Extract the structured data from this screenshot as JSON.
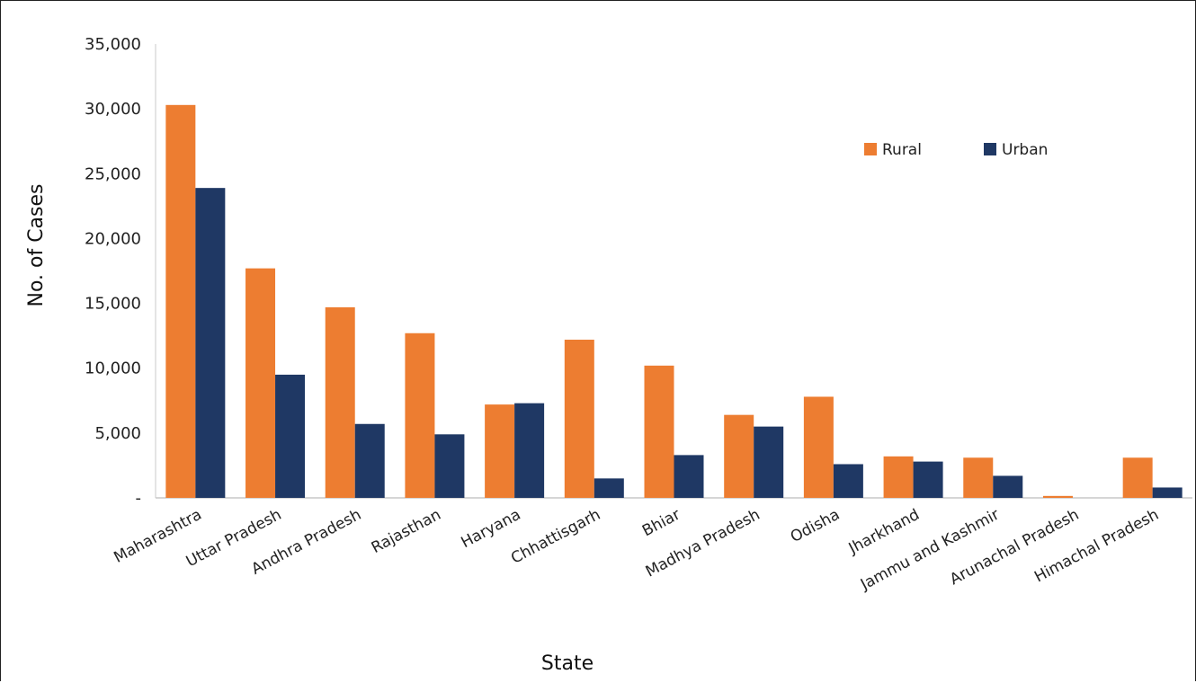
{
  "chart_data": {
    "type": "bar",
    "title": "",
    "xlabel": "State",
    "ylabel": "No. of Cases",
    "ylim": [
      0,
      35000
    ],
    "yticks": [
      0,
      5000,
      10000,
      15000,
      20000,
      25000,
      30000,
      35000
    ],
    "ytick_labels": [
      "-",
      "5,000",
      "10,000",
      "15,000",
      "20,000",
      "25,000",
      "30,000",
      "35,000"
    ],
    "grid": false,
    "legend_position": "top-right",
    "categories": [
      "Maharashtra",
      "Uttar Pradesh",
      "Andhra Pradesh",
      "Rajasthan",
      "Haryana",
      "Chhattisgarh",
      "Bhiar",
      "Madhya Pradesh",
      "Odisha",
      "Jharkhand",
      "Jammu and Kashmir",
      "Arunachal Pradesh",
      "Himachal Pradesh"
    ],
    "series": [
      {
        "name": "Rural",
        "color": "#ED7D31",
        "values": [
          30300,
          17700,
          14700,
          12700,
          7200,
          12200,
          10200,
          6400,
          7800,
          3200,
          3100,
          150,
          3100
        ]
      },
      {
        "name": "Urban",
        "color": "#1F3864",
        "values": [
          23900,
          9500,
          5700,
          4900,
          7300,
          1500,
          3300,
          5500,
          2600,
          2800,
          1700,
          0,
          800
        ]
      }
    ]
  }
}
